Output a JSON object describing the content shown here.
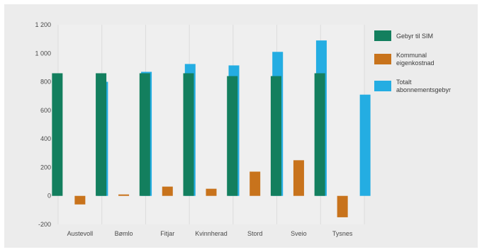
{
  "chart_data": {
    "type": "bar",
    "title": "",
    "xlabel": "",
    "ylabel": "",
    "ylim": [
      -200,
      1200
    ],
    "yticks": [
      -200,
      0,
      200,
      400,
      600,
      800,
      1000,
      1200
    ],
    "ytick_labels": [
      "-200",
      "0",
      "200",
      "400",
      "600",
      "800",
      "1 000",
      "1 200"
    ],
    "grid": "vertical",
    "legend_position": "right",
    "categories": [
      "Austevoll",
      "Bømlo",
      "Fitjar",
      "Kvinnherad",
      "Stord",
      "Sveio",
      "Tysnes"
    ],
    "series": [
      {
        "name": "Gebyr til SIM",
        "color": "#137f5e",
        "values": [
          860,
          860,
          860,
          860,
          840,
          840,
          860
        ]
      },
      {
        "name": "Kommunal eigenkostnad",
        "color": "#c8731c",
        "values": [
          -60,
          10,
          65,
          50,
          170,
          250,
          -150
        ]
      },
      {
        "name": "Totalt abonnementsgebyr",
        "color": "#24ade2",
        "values": [
          800,
          870,
          925,
          915,
          1010,
          1090,
          710
        ]
      }
    ]
  }
}
